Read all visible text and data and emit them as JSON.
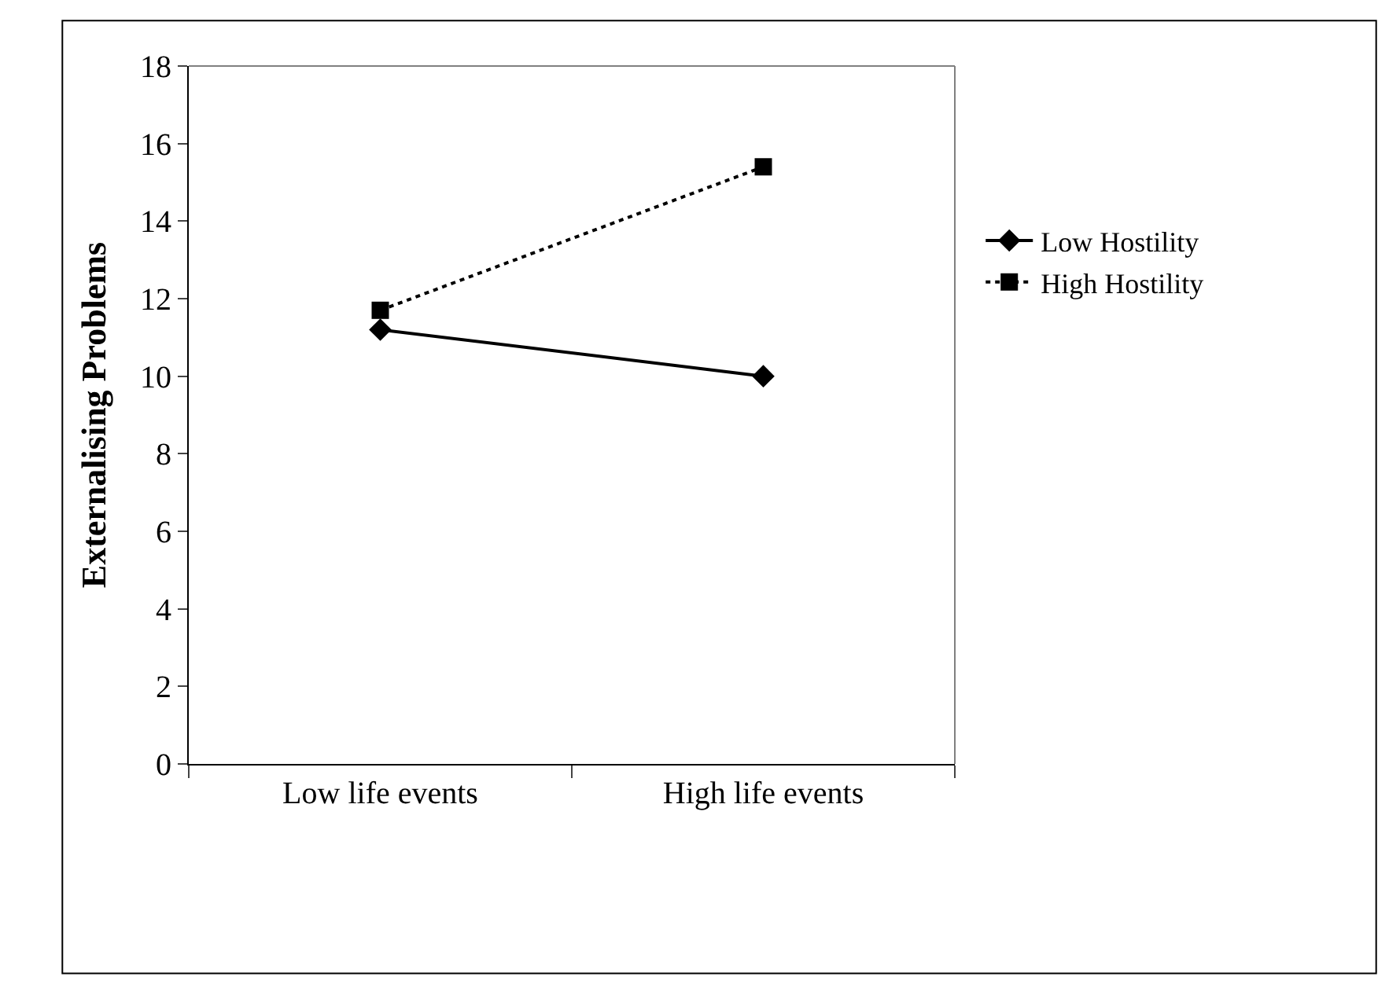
{
  "chart_data": {
    "type": "line",
    "ylabel": "Externalising Problems",
    "categories": [
      "Low life events",
      "High life events"
    ],
    "series": [
      {
        "name": "Low Hostility",
        "color": "#000000",
        "values": [
          11.2,
          10.0
        ],
        "marker": "diamond",
        "line_style": "solid"
      },
      {
        "name": "High Hostility",
        "color": "#000000",
        "values": [
          11.7,
          15.4
        ],
        "marker": "square",
        "line_style": "dotted"
      }
    ],
    "ylim": [
      0,
      18
    ],
    "yticks": [
      0,
      2,
      4,
      6,
      8,
      10,
      12,
      14,
      16,
      18
    ],
    "legend": "right"
  }
}
